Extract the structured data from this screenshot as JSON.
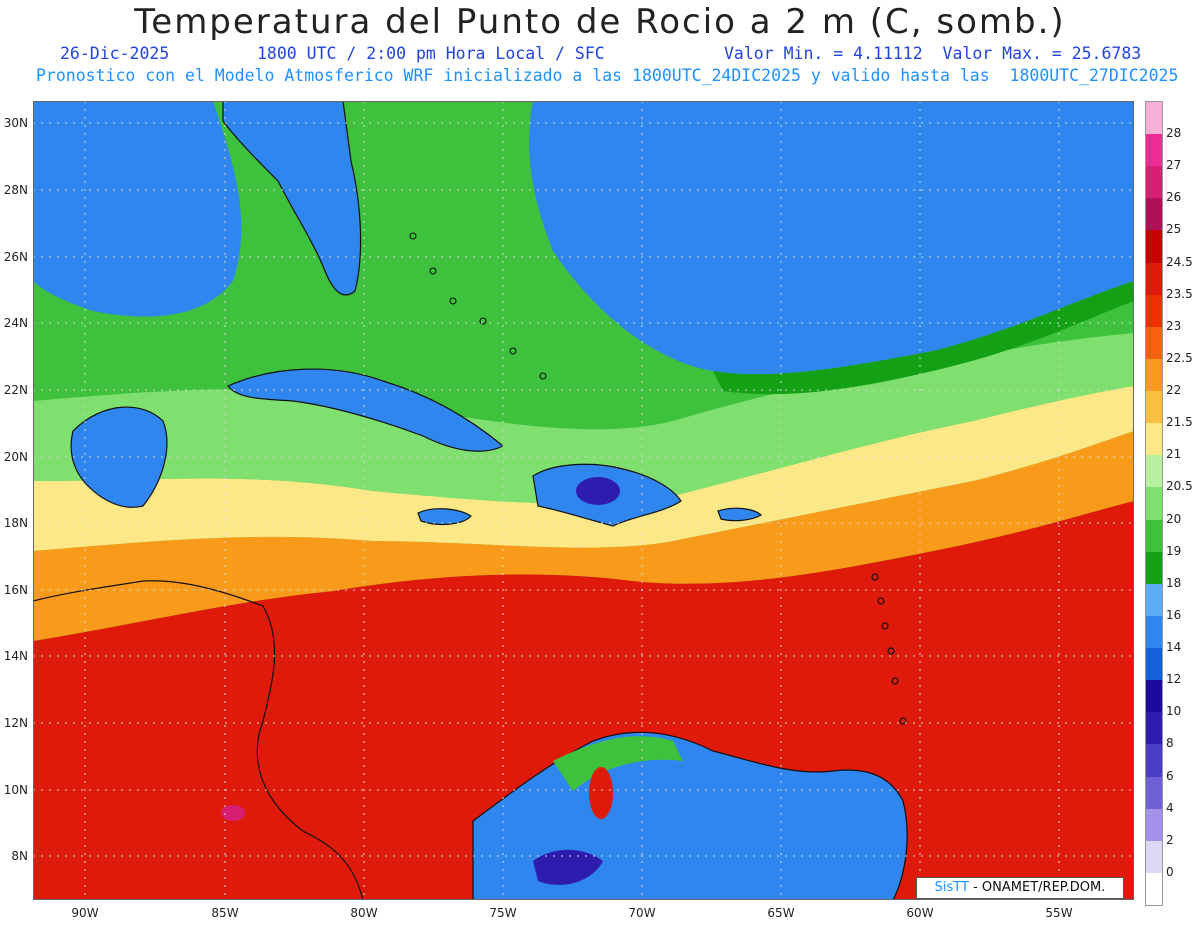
{
  "header": {
    "title": "Temperatura del Punto de Rocio a 2 m (C, somb.)",
    "date": "26-Dic-2025",
    "time": "1800 UTC / 2:00 pm Hora Local / SFC",
    "min_max": "Valor Min. = 4.11112  Valor Max. = 25.6783",
    "model": "Pronostico con el Modelo Atmosferico WRF inicializado a las 1800UTC_24DIC2025 y valido hasta las  1800UTC_27DIC2025"
  },
  "axes": {
    "lat_labels": [
      "30N",
      "28N",
      "26N",
      "24N",
      "22N",
      "20N",
      "18N",
      "16N",
      "14N",
      "12N",
      "10N",
      "8N"
    ],
    "lon_labels": [
      "90W",
      "85W",
      "80W",
      "75W",
      "70W",
      "65W",
      "60W",
      "55W"
    ]
  },
  "colorbar": {
    "labels": [
      "28",
      "27",
      "26",
      "25",
      "24.5",
      "23.5",
      "23",
      "22.5",
      "22",
      "21.5",
      "21",
      "20.5",
      "20",
      "19",
      "18",
      "16",
      "14",
      "12",
      "10",
      "8",
      "6",
      "4",
      "2",
      "0"
    ],
    "colors": [
      "#f7b0d8",
      "#ee2a96",
      "#d81e72",
      "#b01058",
      "#c80000",
      "#e01a0a",
      "#ee3000",
      "#f86010",
      "#fa9a1a",
      "#fcc040",
      "#fde888",
      "#b6f0a0",
      "#7fe070",
      "#3ec23e",
      "#14a014",
      "#5aacf6",
      "#2f86ee",
      "#1460d8",
      "#1c0a9c",
      "#2e1cae",
      "#4a3ec4",
      "#7060d6",
      "#a492ea",
      "#dcd8f6",
      "#ffffff"
    ]
  },
  "map_colors": {
    "ocean_dry": "#2f86ee",
    "green": "#3ec23e",
    "light_green": "#7fe070",
    "yellow": "#fde888",
    "orange": "#fa9a1a",
    "red": "#e01a0a",
    "dark_red": "#c80000",
    "purple": "#2e1cae"
  },
  "credit": {
    "brand": "SisTT",
    "org": "- ONAMET/REP.DOM."
  }
}
